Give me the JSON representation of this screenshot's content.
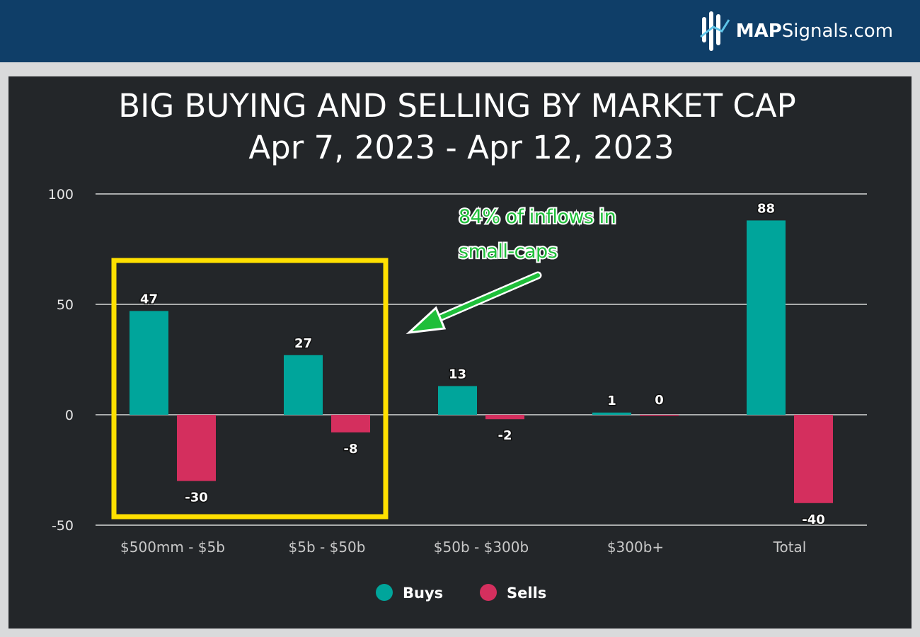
{
  "header": {
    "logo_bold": "MAP",
    "logo_rest": "Signals.com"
  },
  "colors": {
    "header_bg": "#0f3e68",
    "panel_bg": "#232629",
    "buys": "#00a59b",
    "sells": "#d42f5e",
    "highlight_box": "#ffe000",
    "annotation": "#1fbf3a"
  },
  "chart_data": {
    "type": "bar",
    "title": "BIG BUYING AND SELLING BY MARKET CAP",
    "subtitle": "Apr 7, 2023 - Apr 12, 2023",
    "categories": [
      "$500mm - $5b",
      "$5b - $50b",
      "$50b - $300b",
      "$300b+",
      "Total"
    ],
    "series": [
      {
        "name": "Buys",
        "values": [
          47,
          27,
          13,
          1,
          88
        ]
      },
      {
        "name": "Sells",
        "values": [
          -30,
          -8,
          -2,
          0,
          -40
        ]
      }
    ],
    "data_labels": {
      "Buys": [
        "47",
        "27",
        "13",
        "1",
        "88"
      ],
      "Sells": [
        "-30",
        "-8",
        "-2",
        "0",
        "-40"
      ]
    },
    "ylim": [
      -50,
      100
    ],
    "yticks": [
      -50,
      0,
      50,
      100
    ],
    "ytick_labels": [
      "-50",
      "0",
      "50",
      "100"
    ],
    "grid": true,
    "legend": "bottom-center",
    "annotation": {
      "lines": [
        "84% of inflows in",
        "small-caps"
      ],
      "highlights_categories": [
        "$500mm - $5b",
        "$5b - $50b"
      ]
    }
  }
}
